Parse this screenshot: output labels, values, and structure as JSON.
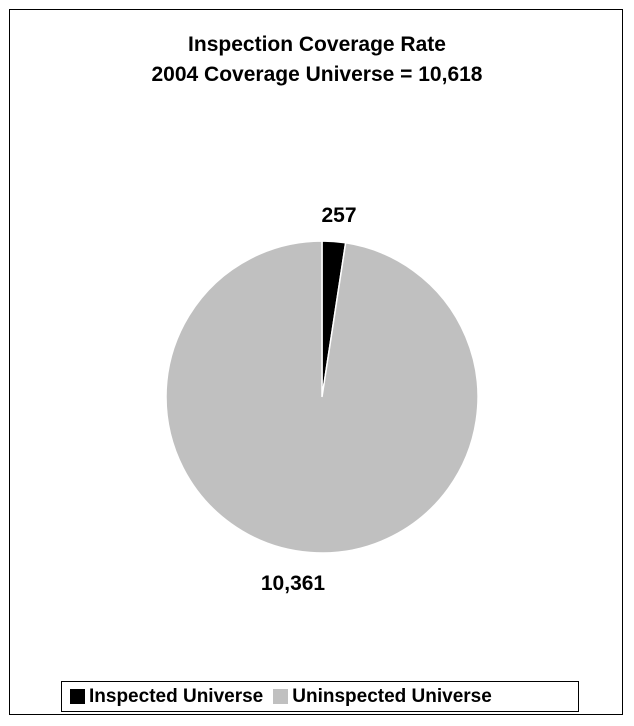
{
  "chart_data": {
    "type": "pie",
    "title": "Inspection Coverage Rate",
    "subtitle": "2004 Coverage Universe = 10,618",
    "slices": [
      {
        "name": "Inspected Universe",
        "value": 257,
        "label": "257",
        "color": "#000000"
      },
      {
        "name": "Uninspected Universe",
        "value": 10361,
        "label": "10,361",
        "color": "#c0c0c0"
      }
    ],
    "legend_position": "bottom"
  }
}
